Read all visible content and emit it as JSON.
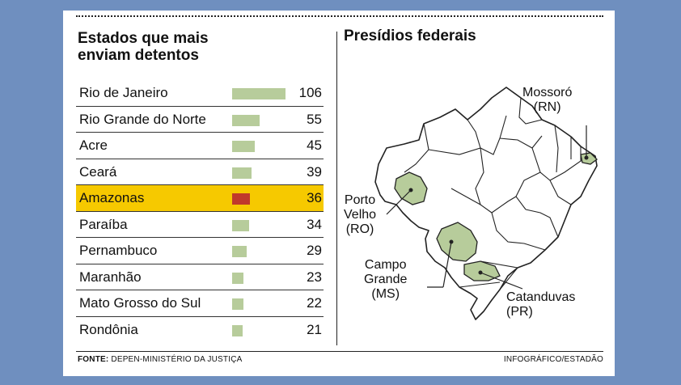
{
  "chart_data": {
    "type": "bar",
    "title": "Estados que mais enviam detentos",
    "orientation": "horizontal",
    "categories": [
      "Rio de Janeiro",
      "Rio Grande do Norte",
      "Acre",
      "Ceará",
      "Amazonas",
      "Paraíba",
      "Pernambuco",
      "Maranhão",
      "Mato Grosso do Sul",
      "Rondônia"
    ],
    "values": [
      106,
      55,
      45,
      39,
      36,
      34,
      29,
      23,
      22,
      21
    ],
    "highlight": "Amazonas",
    "bar_color": "#b7cc9b",
    "highlight_color": "#c0392b",
    "highlight_row_color": "#f6c900",
    "xlim": [
      0,
      106
    ]
  },
  "map": {
    "title": "Presídios federais",
    "highlight_color": "#b7cc9b",
    "prisons": [
      {
        "city": "Mossoró",
        "state": "(RN)"
      },
      {
        "city": "Porto Velho",
        "state": "(RO)"
      },
      {
        "city": "Campo Grande",
        "state": "(MS)"
      },
      {
        "city": "Catanduvas",
        "state": "(PR)"
      }
    ]
  },
  "footer": {
    "source_label": "FONTE:",
    "source_text": " DEPEN-MINISTÉRIO DA JUSTIÇA",
    "credit": "INFOGRÁFICO/ESTADÃO"
  }
}
